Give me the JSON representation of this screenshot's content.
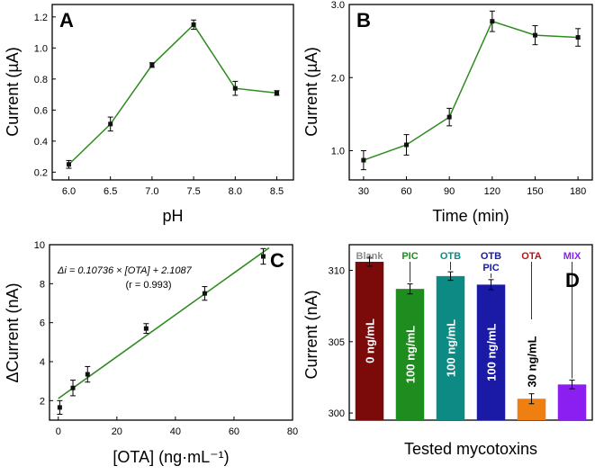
{
  "chart_data": [
    {
      "type": "line",
      "panel_label": "A",
      "xlabel": "pH",
      "ylabel": "Current (µA)",
      "x": [
        6.0,
        6.5,
        7.0,
        7.5,
        8.0,
        8.5
      ],
      "y": [
        0.25,
        0.51,
        0.89,
        1.15,
        0.74,
        0.71
      ],
      "err": [
        0.025,
        0.045,
        0.015,
        0.03,
        0.045,
        0.015
      ],
      "xticks": [
        "6.0",
        "6.5",
        "7.0",
        "7.5",
        "8.0",
        "8.5"
      ],
      "yticks": [
        "0.2",
        "0.4",
        "0.6",
        "0.8",
        "1.0",
        "1.2"
      ],
      "xlim": [
        5.8,
        8.7
      ],
      "ylim": [
        0.15,
        1.28
      ],
      "color": "#2e8b1f"
    },
    {
      "type": "line",
      "panel_label": "B",
      "xlabel": "Time (min)",
      "ylabel": "Current (µA)",
      "x": [
        30,
        60,
        90,
        120,
        150,
        180
      ],
      "y": [
        0.87,
        1.08,
        1.46,
        2.77,
        2.58,
        2.55
      ],
      "err": [
        0.13,
        0.14,
        0.12,
        0.14,
        0.13,
        0.12
      ],
      "xticks": [
        "30",
        "60",
        "90",
        "120",
        "150",
        "180"
      ],
      "yticks": [
        "1.0",
        "2.0",
        "3.0"
      ],
      "xlim": [
        20,
        190
      ],
      "ylim": [
        0.6,
        3.0
      ],
      "color": "#2e8b1f"
    },
    {
      "type": "scatter",
      "panel_label": "C",
      "xlabel": "[OTA] (ng·mL⁻¹)",
      "ylabel": "ΔCurrent (nA)",
      "x": [
        0.5,
        5,
        10,
        30,
        50,
        70
      ],
      "y": [
        1.65,
        2.65,
        3.35,
        5.7,
        7.5,
        9.4
      ],
      "err": [
        0.35,
        0.4,
        0.4,
        0.25,
        0.35,
        0.4
      ],
      "fit": {
        "slope": 0.10736,
        "intercept": 2.1087,
        "x_range": [
          0,
          72
        ]
      },
      "equation": "Δi = 0.10736 × [OTA] + 2.1087",
      "r_text": "(r = 0.993)",
      "xticks": [
        "0",
        "20",
        "40",
        "60",
        "80"
      ],
      "yticks": [
        "2",
        "4",
        "6",
        "8",
        "10"
      ],
      "xlim": [
        -3,
        80
      ],
      "ylim": [
        1.0,
        10.0
      ],
      "color": "#2e8b1f"
    },
    {
      "type": "bar",
      "panel_label": "D",
      "xlabel": "Tested mycotoxins",
      "ylabel": "Current (nA)",
      "categories": [
        "Blank",
        "PIC",
        "OTB",
        "OTB PIC",
        "OTA",
        "MIX"
      ],
      "top_labels": [
        "Blank",
        "PIC",
        "OTB",
        "OTB",
        "OTA",
        "MIX"
      ],
      "top_labels_2": [
        "",
        "",
        "",
        "PIC",
        "",
        ""
      ],
      "values": [
        310.6,
        308.7,
        309.6,
        309.0,
        301.0,
        302.0
      ],
      "err": [
        0.3,
        0.35,
        0.3,
        0.35,
        0.35,
        0.3
      ],
      "bar_labels": [
        "0 ng/mL",
        "100 ng/mL",
        "100 ng/mL",
        "100 ng/mL",
        "30 ng/mL",
        ""
      ],
      "colors": [
        "#7b0a0a",
        "#1e8c1e",
        "#0e8a84",
        "#1a1aa6",
        "#f07f12",
        "#8b1ef0"
      ],
      "label_colors": [
        "#8c8c8c",
        "#1e8c1e",
        "#0e8a84",
        "#1a1aa6",
        "#b51616",
        "#8b1ef0"
      ],
      "yticks": [
        "300",
        "305",
        "310"
      ],
      "ylim": [
        299.5,
        311.8
      ]
    }
  ]
}
